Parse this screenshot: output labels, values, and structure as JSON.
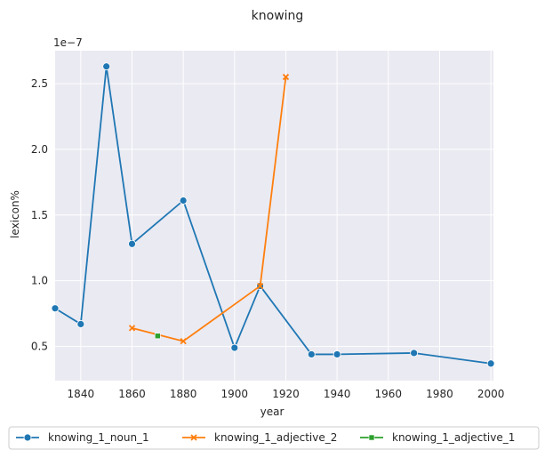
{
  "chart_data": {
    "type": "line",
    "title": "knowing",
    "xlabel": "year",
    "ylabel": "lexicon%",
    "y_exponent_label": "1e−7",
    "y_scale": 1e-07,
    "xlim": [
      1830,
      2001
    ],
    "ylim": [
      0.24,
      2.75
    ],
    "x_ticks": [
      1840,
      1860,
      1880,
      1900,
      1920,
      1940,
      1960,
      1980,
      2000
    ],
    "x_tick_labels": [
      "1840",
      "1860",
      "1880",
      "1900",
      "1920",
      "1940",
      "1960",
      "1980",
      "2000"
    ],
    "y_ticks": [
      0.5,
      1.0,
      1.5,
      2.0,
      2.5
    ],
    "y_tick_labels": [
      "0.5",
      "1.0",
      "1.5",
      "2.0",
      "2.5"
    ],
    "grid": true,
    "legend_position": "below",
    "series": [
      {
        "name": "knowing_1_noun_1",
        "color": "#1f77b4",
        "marker": "circle",
        "x": [
          1830,
          1840,
          1850,
          1860,
          1880,
          1900,
          1910,
          1930,
          1940,
          1970,
          2000
        ],
        "y": [
          0.79,
          0.67,
          2.63,
          1.28,
          1.61,
          0.49,
          0.96,
          0.44,
          0.44,
          0.45,
          0.37
        ]
      },
      {
        "name": "knowing_1_adjective_2",
        "color": "#ff7f0e",
        "marker": "x",
        "x": [
          1860,
          1880,
          1910,
          1920
        ],
        "y": [
          0.64,
          0.54,
          0.96,
          2.55
        ]
      },
      {
        "name": "knowing_1_adjective_1",
        "color": "#2ca02c",
        "marker": "square",
        "x": [
          1870
        ],
        "y": [
          0.58
        ]
      }
    ]
  }
}
